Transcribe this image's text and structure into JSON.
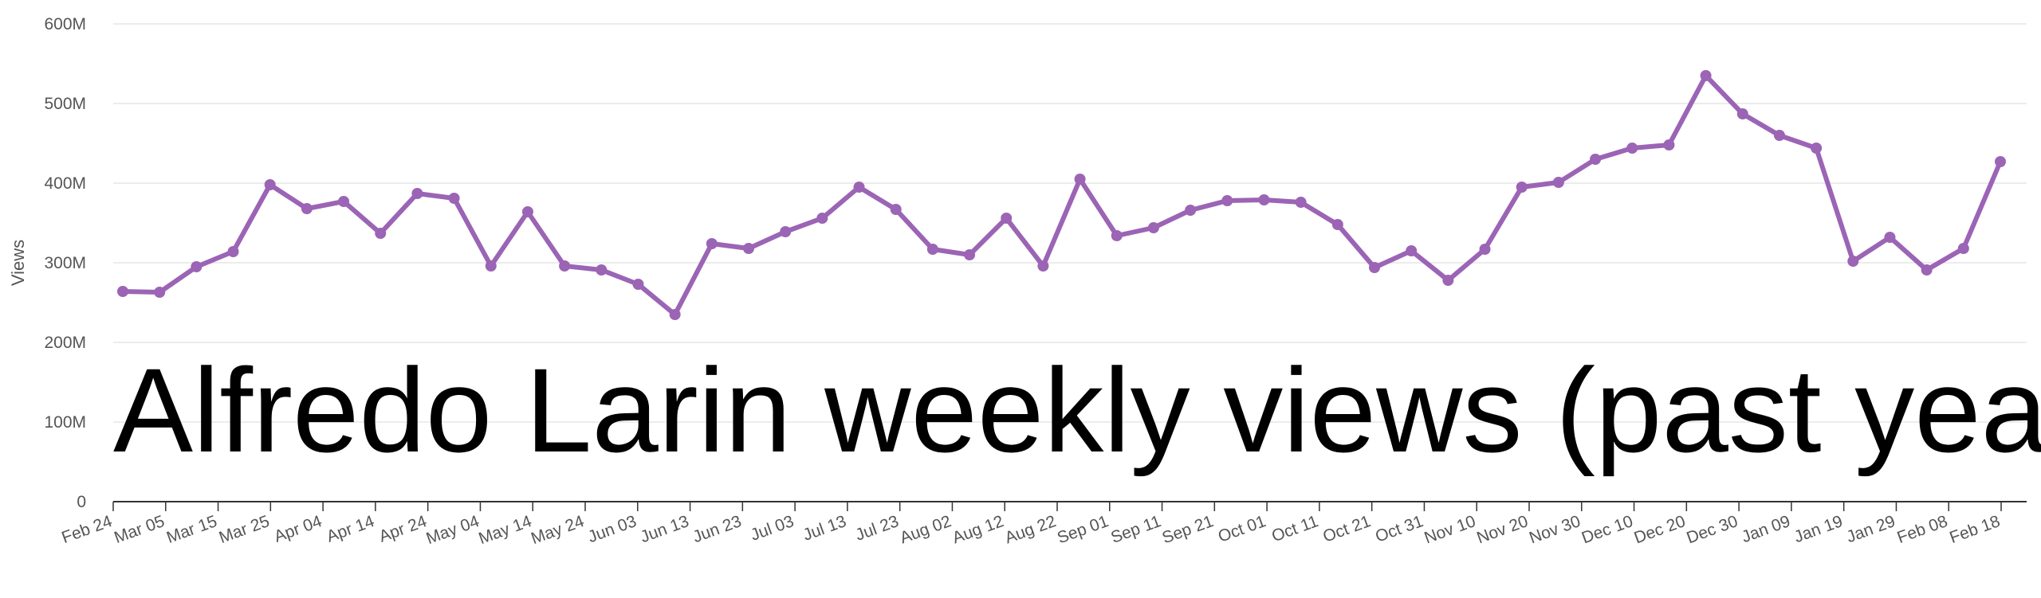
{
  "overlay_title": "Alfredo Larin weekly views (past year)",
  "colors": {
    "line": "#9b64b5",
    "grid": "#e6e6e6",
    "axis": "#333333",
    "text": "#555555"
  },
  "chart_data": {
    "type": "line",
    "title": "",
    "ylabel": "Views",
    "xlabel": "",
    "ylim": [
      0,
      600000000
    ],
    "yticks": [
      0,
      100000000,
      200000000,
      300000000,
      400000000,
      500000000,
      600000000
    ],
    "ytick_labels": [
      "0",
      "100M",
      "200M",
      "300M",
      "400M",
      "500M",
      "600M"
    ],
    "grid": true,
    "x_tick_labels": [
      "Feb 24",
      "Mar 05",
      "Mar 15",
      "Mar 25",
      "Apr 04",
      "Apr 14",
      "Apr 24",
      "May 04",
      "May 14",
      "May 24",
      "Jun 03",
      "Jun 13",
      "Jun 23",
      "Jul 03",
      "Jul 13",
      "Jul 23",
      "Aug 02",
      "Aug 12",
      "Aug 22",
      "Sep 01",
      "Sep 11",
      "Sep 21",
      "Oct 01",
      "Oct 11",
      "Oct 21",
      "Oct 31",
      "Nov 10",
      "Nov 20",
      "Nov 30",
      "Dec 10",
      "Dec 20",
      "Dec 30",
      "Jan 09",
      "Jan 19",
      "Jan 29",
      "Feb 08",
      "Feb 18"
    ],
    "series": [
      {
        "values": [
          264000000,
          263000000,
          295000000,
          314000000,
          398000000,
          368000000,
          377000000,
          337000000,
          387000000,
          381000000,
          296000000,
          364000000,
          296000000,
          291000000,
          273000000,
          235000000,
          324000000,
          318000000,
          339000000,
          356000000,
          395000000,
          367000000,
          317000000,
          310000000,
          356000000,
          296000000,
          405000000,
          334000000,
          344000000,
          366000000,
          378000000,
          379000000,
          376000000,
          348000000,
          294000000,
          315000000,
          278000000,
          317000000,
          395000000,
          401000000,
          430000000,
          444000000,
          448000000,
          535000000,
          487000000,
          460000000,
          444000000,
          302000000,
          332000000,
          291000000,
          318000000,
          427000000
        ]
      }
    ]
  }
}
